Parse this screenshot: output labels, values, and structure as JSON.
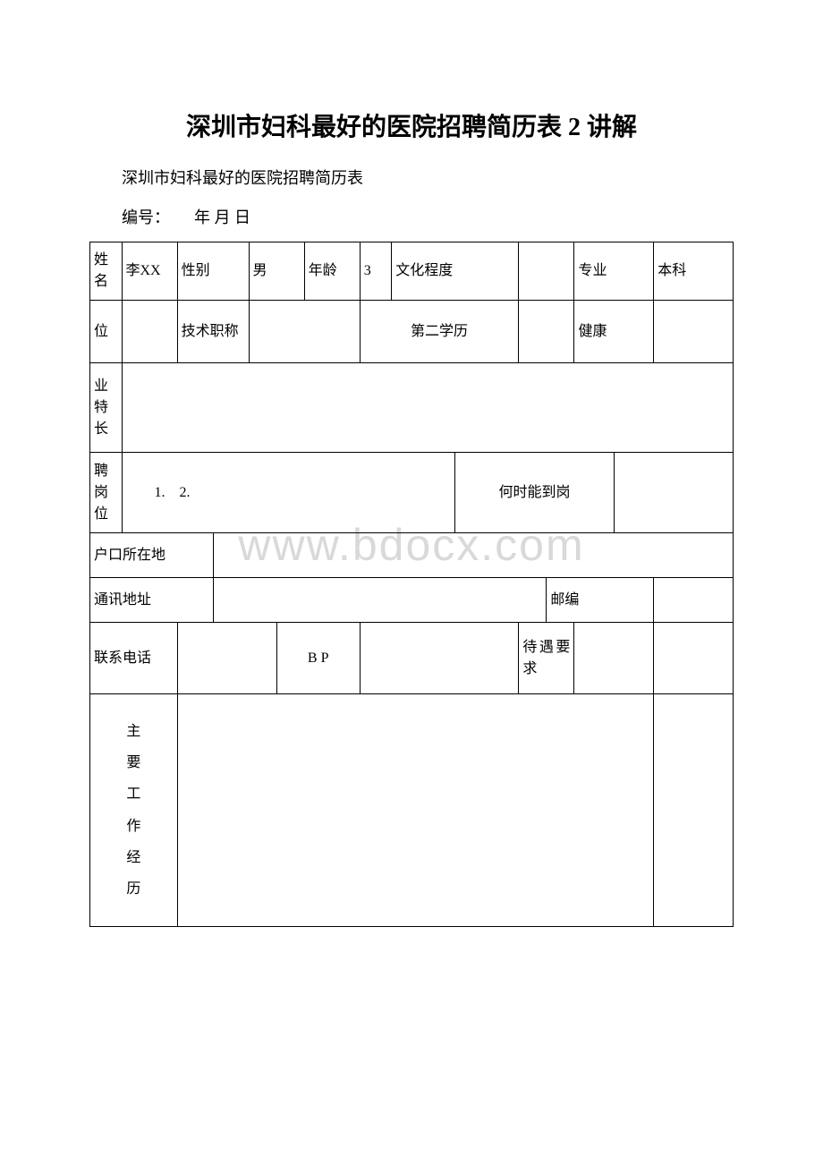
{
  "title": "深圳市妇科最好的医院招聘简历表 2 讲解",
  "subtitle": "深圳市妇科最好的医院招聘简历表",
  "meta_line": "编号：　　年 月 日",
  "watermark": "www.bdocx.com",
  "row1": {
    "name_label": "姓名",
    "name_val": "李XX",
    "gender_label": "性别",
    "gender_val": "男",
    "age_label": "年龄",
    "age_val": "3",
    "edu_label": "文化程度",
    "edu_val": "",
    "major_label": "专业",
    "major_val": "本科"
  },
  "row2": {
    "unit_label": "位",
    "unit_val": "",
    "title_label": "技术职称",
    "title_val": "",
    "edu2_label": "第二学历",
    "edu2_val": "",
    "health_label": "健康",
    "health_val": ""
  },
  "row3": {
    "skill_label": "业特长",
    "skill_val": ""
  },
  "row4": {
    "post_label": "聘岗位",
    "post_val": "1.　2.",
    "arrive_label": "何时能到岗",
    "arrive_val": ""
  },
  "row5": {
    "hukou_label": "户口所在地",
    "hukou_val": ""
  },
  "row6": {
    "addr_label": "通讯地址",
    "addr_val": "",
    "zip_label": "邮编",
    "zip_val": ""
  },
  "row7": {
    "phone_label": "联系电话",
    "phone_val": "",
    "bp_label": "B P",
    "bp_val": "",
    "salary_label": "待遇要求",
    "salary_val": ""
  },
  "row8": {
    "exp_label": "主\n要\n工\n作\n经\n历",
    "exp_val": ""
  }
}
